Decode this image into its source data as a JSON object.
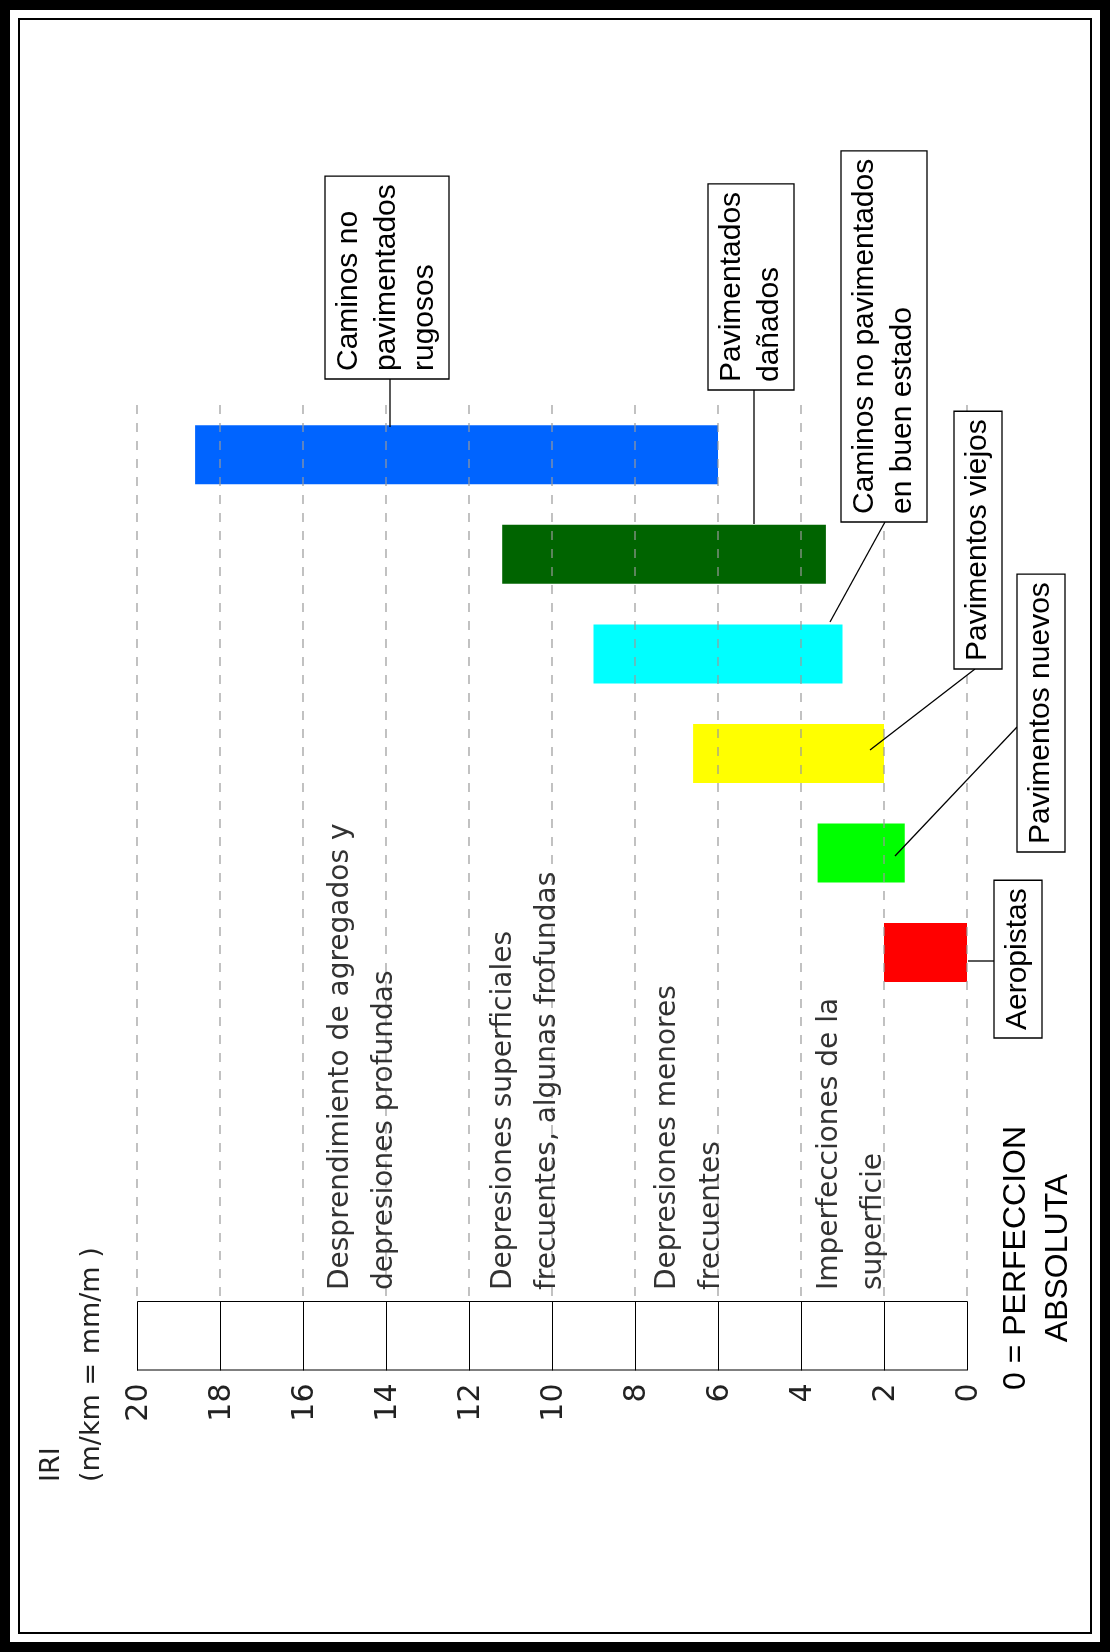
{
  "chart_data": {
    "type": "bar",
    "orientation": "horizontal",
    "categories": [
      null,
      null,
      null,
      null,
      null,
      null,
      null,
      null,
      null
    ],
    "base": [
      6,
      3.4,
      3,
      2,
      1.5,
      0,
      null,
      null,
      null
    ],
    "values": [
      12.6,
      7.8,
      6,
      4.6,
      2.1,
      2,
      null,
      null,
      null
    ],
    "colors": [
      "#0064ff",
      "#006400",
      "#00ffff",
      "#ffff00",
      "#00ff00",
      "#ff0000",
      null,
      null,
      null
    ],
    "xlim": [
      20,
      0
    ],
    "xticks": [
      20,
      18,
      16,
      14,
      12,
      10,
      8,
      6,
      4,
      2,
      0
    ],
    "grid": "x",
    "annotations": [
      "IRI\n(m/km = mm/m )",
      "Desprendimiento de agregados y\ndepresiones profundas",
      "Depresiones superficiales\nfrecuentes, algunas frofundas",
      "Depresiones menores\nfrecuentes",
      "Imperfecciones de la\nsuperficie",
      "0 = PERFECCION\nABSOLUTA",
      "Caminos no\npavimentados\nrugosos",
      "Pavimentados\ndañados",
      "Caminos no pavimentados\nen buen estado",
      "Pavimentos viejos",
      "Pavimentos nuevos",
      "Aeropistas"
    ]
  }
}
